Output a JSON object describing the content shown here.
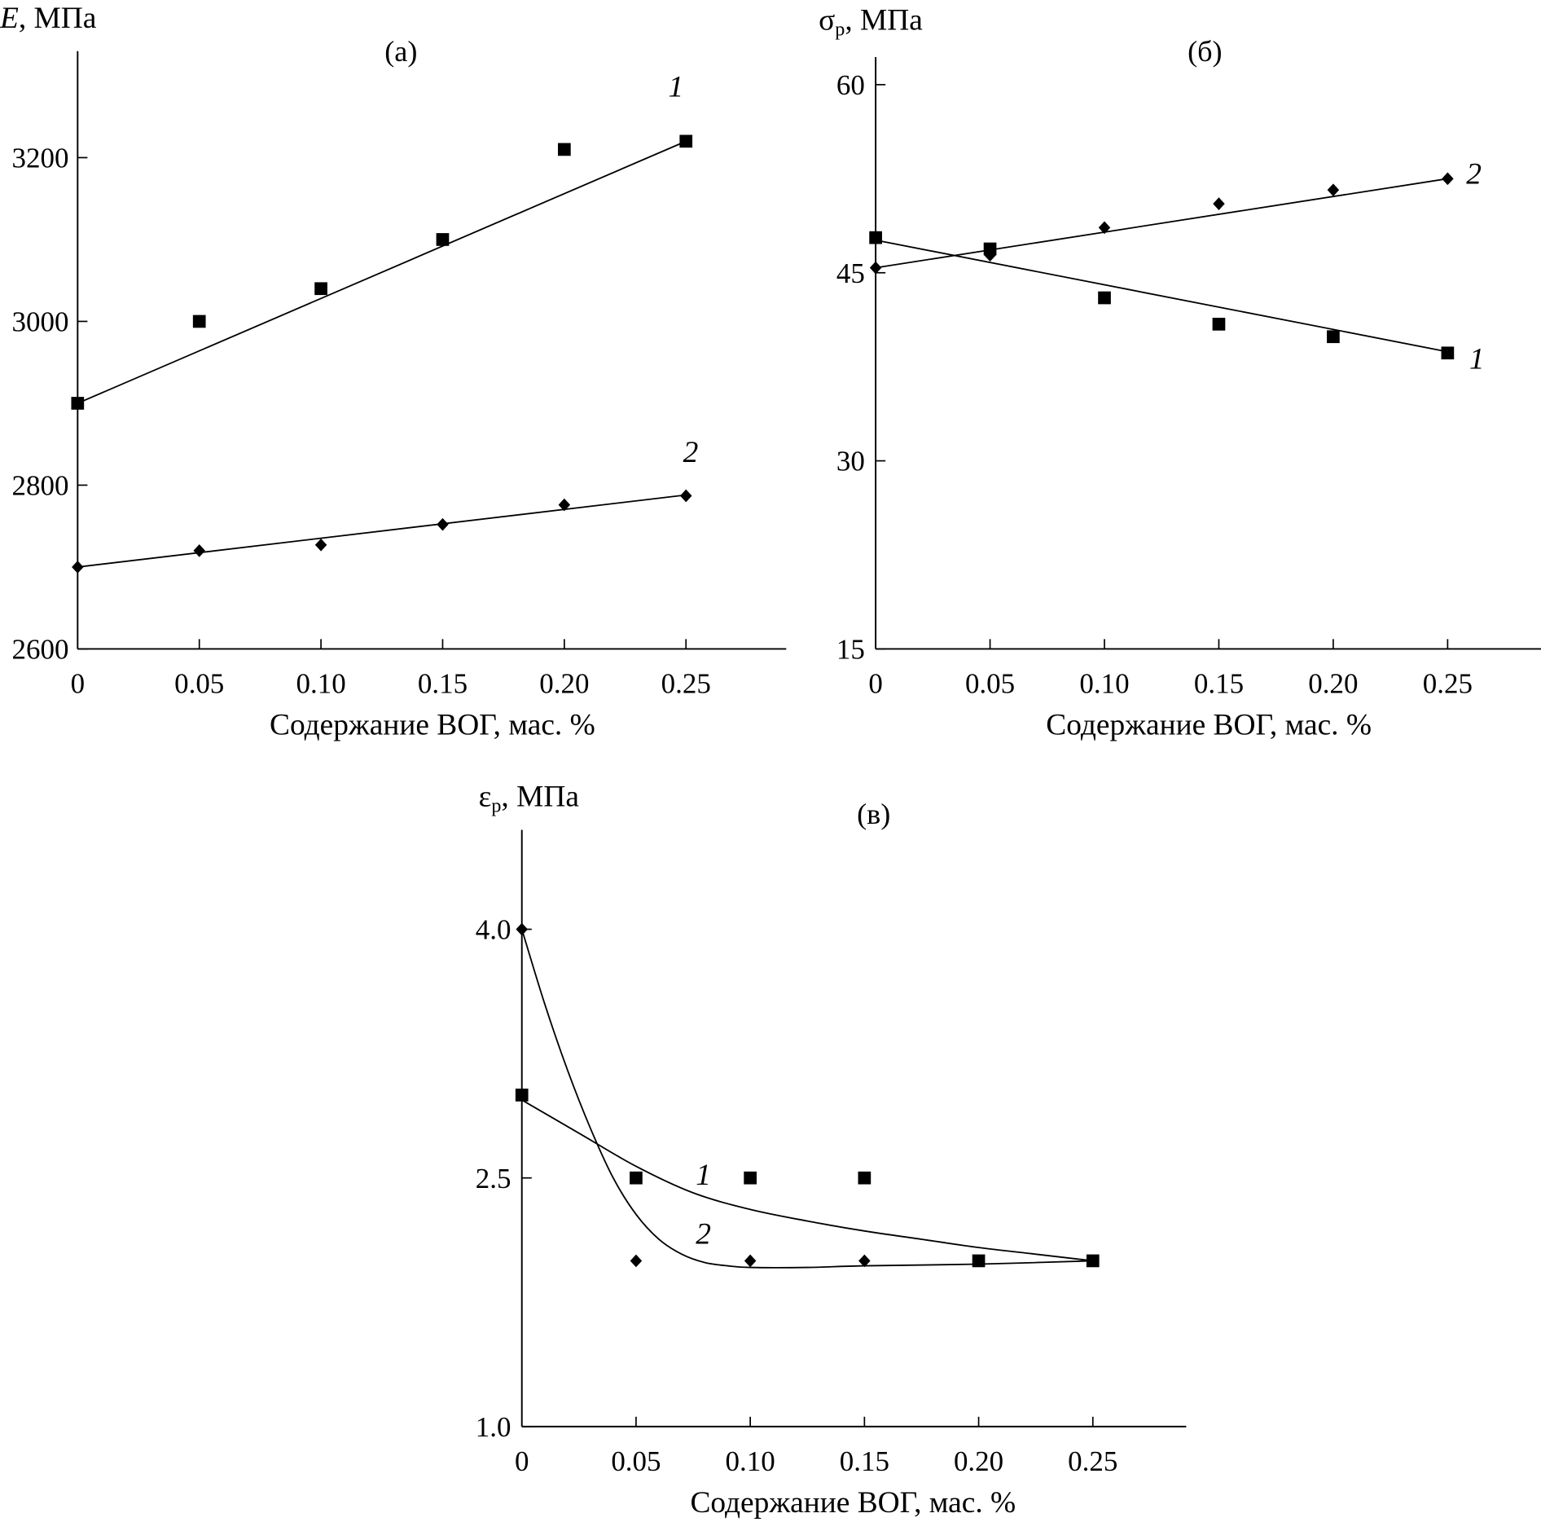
{
  "chart_data": [
    {
      "id": "a",
      "type": "scatter",
      "panel_label": "(а)",
      "title": "",
      "ylabel_symbol": "E",
      "ylabel_unit": ", МПа",
      "xlabel": "Содержание ВОГ, мас. %",
      "xlim": [
        0,
        0.29
      ],
      "ylim": [
        2600,
        3330
      ],
      "xticks": [
        0,
        0.05,
        0.1,
        0.15,
        0.2,
        0.25
      ],
      "xtick_labels": [
        "0",
        "0.05",
        "0.10",
        "0.15",
        "0.20",
        "0.25"
      ],
      "yticks": [
        2600,
        2800,
        3000,
        3200
      ],
      "ytick_labels": [
        "2600",
        "2800",
        "3000",
        "3200"
      ],
      "grid": false,
      "series": [
        {
          "name": "1",
          "marker": "square",
          "x": [
            0,
            0.05,
            0.1,
            0.15,
            0.2,
            0.25
          ],
          "values": [
            2900,
            3000,
            3040,
            3100,
            3210,
            3220
          ],
          "fit": "linear",
          "fit_line": {
            "x": [
              0,
              0.25
            ],
            "y": [
              2900,
              3220
            ]
          }
        },
        {
          "name": "2",
          "marker": "diamond",
          "x": [
            0,
            0.05,
            0.1,
            0.15,
            0.2,
            0.25
          ],
          "values": [
            2700,
            2720,
            2727,
            2752,
            2776,
            2787
          ],
          "fit": "linear",
          "fit_line": {
            "x": [
              0,
              0.25
            ],
            "y": [
              2700,
              2788
            ]
          }
        }
      ]
    },
    {
      "id": "b",
      "type": "scatter",
      "panel_label": "(б)",
      "title": "",
      "ylabel_symbol": "σ",
      "ylabel_sub": "р",
      "ylabel_unit": ", МПа",
      "xlabel": "Содержание ВОГ, мас. %",
      "xlim": [
        0,
        0.29
      ],
      "ylim": [
        15,
        62.2
      ],
      "xticks": [
        0,
        0.05,
        0.1,
        0.15,
        0.2,
        0.25
      ],
      "xtick_labels": [
        "0",
        "0.05",
        "0.10",
        "0.15",
        "0.20",
        "0.25"
      ],
      "yticks": [
        15,
        30,
        45,
        60
      ],
      "ytick_labels": [
        "15",
        "30",
        "45",
        "60"
      ],
      "grid": false,
      "series": [
        {
          "name": "1",
          "marker": "square",
          "x": [
            0,
            0.05,
            0.1,
            0.15,
            0.2,
            0.25
          ],
          "values": [
            47.8,
            46.9,
            43.0,
            40.9,
            39.9,
            38.6
          ],
          "fit": "linear",
          "fit_line": {
            "x": [
              0,
              0.25
            ],
            "y": [
              47.6,
              38.7
            ]
          }
        },
        {
          "name": "2",
          "marker": "diamond",
          "x": [
            0,
            0.05,
            0.1,
            0.15,
            0.2,
            0.25
          ],
          "values": [
            45.4,
            46.4,
            48.6,
            50.5,
            51.6,
            52.5
          ],
          "fit": "linear",
          "fit_line": {
            "x": [
              0,
              0.25
            ],
            "y": [
              45.4,
              52.5
            ]
          }
        }
      ]
    },
    {
      "id": "c",
      "type": "scatter",
      "panel_label": "(в)",
      "title": "",
      "ylabel_symbol": "ε",
      "ylabel_sub": "р",
      "ylabel_unit": ", МПа",
      "xlabel": "Содержание ВОГ, мас. %",
      "xlim": [
        0,
        0.29
      ],
      "ylim": [
        1.0,
        4.6
      ],
      "xticks": [
        0,
        0.05,
        0.1,
        0.15,
        0.2,
        0.25
      ],
      "xtick_labels": [
        "0",
        "0.05",
        "0.10",
        "0.15",
        "0.20",
        "0.25"
      ],
      "yticks": [
        1.0,
        2.5,
        4.0
      ],
      "ytick_labels": [
        "1.0",
        "2.5",
        "4.0"
      ],
      "grid": false,
      "series": [
        {
          "name": "1",
          "marker": "square",
          "x": [
            0,
            0.05,
            0.1,
            0.15,
            0.2,
            0.25
          ],
          "values": [
            3.0,
            2.5,
            2.5,
            2.5,
            2.0,
            2.0
          ],
          "fit": "smooth",
          "fit_line": {
            "x": [
              0,
              0.025,
              0.05,
              0.075,
              0.1,
              0.125,
              0.15,
              0.175,
              0.2,
              0.225,
              0.25
            ],
            "y": [
              2.97,
              2.77,
              2.57,
              2.41,
              2.31,
              2.24,
              2.18,
              2.13,
              2.08,
              2.04,
              2.0
            ]
          }
        },
        {
          "name": "2",
          "marker": "diamond",
          "x": [
            0,
            0.05,
            0.1,
            0.15,
            0.25
          ],
          "values": [
            4.0,
            2.0,
            2.0,
            2.0,
            2.0
          ],
          "fit": "smooth",
          "fit_line": {
            "x": [
              0,
              0.01,
              0.02,
              0.03,
              0.04,
              0.05,
              0.06,
              0.07,
              0.08,
              0.09,
              0.1,
              0.125,
              0.15,
              0.2,
              0.25
            ],
            "y": [
              4.0,
              3.55,
              3.15,
              2.8,
              2.5,
              2.28,
              2.13,
              2.04,
              1.99,
              1.97,
              1.96,
              1.96,
              1.97,
              1.98,
              2.0
            ]
          }
        }
      ]
    }
  ]
}
